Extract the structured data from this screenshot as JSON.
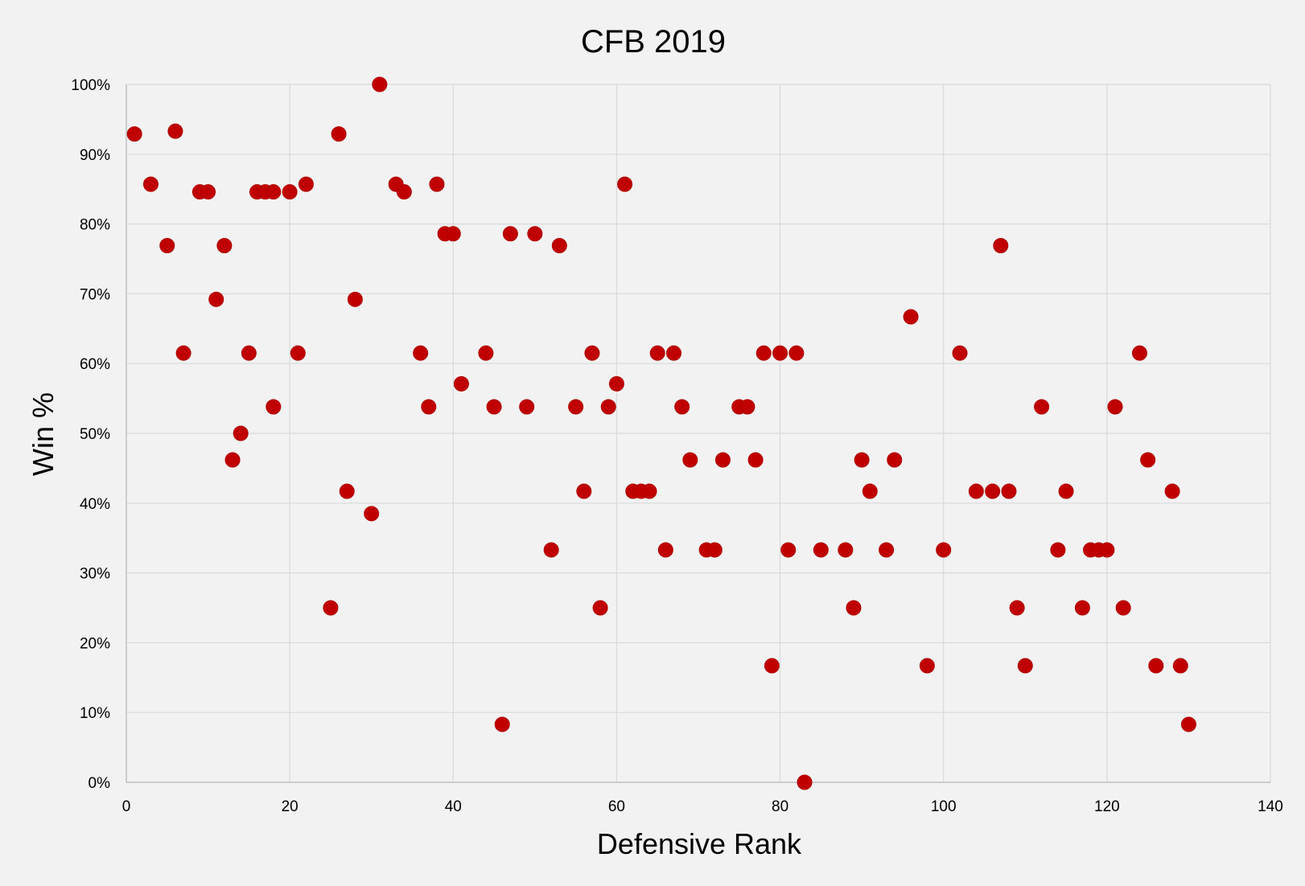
{
  "chart_data": {
    "type": "scatter",
    "title": "CFB 2019",
    "xlabel": "Defensive Rank",
    "ylabel": "Win %",
    "xlim": [
      0,
      140
    ],
    "ylim": [
      0,
      1
    ],
    "xticks": [
      0,
      20,
      40,
      60,
      80,
      100,
      120,
      140
    ],
    "yticks": [
      0,
      0.1,
      0.2,
      0.3,
      0.4,
      0.5,
      0.6,
      0.7,
      0.8,
      0.9,
      1.0
    ],
    "ytick_labels": [
      "0%",
      "10%",
      "20%",
      "30%",
      "40%",
      "50%",
      "60%",
      "70%",
      "80%",
      "90%",
      "100%"
    ],
    "grid": true,
    "legend": "none",
    "marker_color": "#c00000",
    "series": [
      {
        "points": [
          [
            1,
            0.929
          ],
          [
            3,
            0.857
          ],
          [
            5,
            0.769
          ],
          [
            6,
            0.933
          ],
          [
            7,
            0.615
          ],
          [
            9,
            0.846
          ],
          [
            10,
            0.846
          ],
          [
            11,
            0.692
          ],
          [
            12,
            0.769
          ],
          [
            13,
            0.462
          ],
          [
            14,
            0.5
          ],
          [
            15,
            0.615
          ],
          [
            16,
            0.846
          ],
          [
            17,
            0.846
          ],
          [
            18,
            0.846
          ],
          [
            18,
            0.538
          ],
          [
            20,
            0.846
          ],
          [
            21,
            0.615
          ],
          [
            22,
            0.857
          ],
          [
            25,
            0.25
          ],
          [
            26,
            0.929
          ],
          [
            27,
            0.417
          ],
          [
            28,
            0.692
          ],
          [
            30,
            0.385
          ],
          [
            31,
            1.0
          ],
          [
            33,
            0.857
          ],
          [
            34,
            0.846
          ],
          [
            36,
            0.615
          ],
          [
            37,
            0.538
          ],
          [
            38,
            0.857
          ],
          [
            39,
            0.786
          ],
          [
            40,
            0.786
          ],
          [
            41,
            0.571
          ],
          [
            44,
            0.615
          ],
          [
            45,
            0.538
          ],
          [
            46,
            0.083
          ],
          [
            47,
            0.786
          ],
          [
            49,
            0.538
          ],
          [
            50,
            0.786
          ],
          [
            52,
            0.333
          ],
          [
            53,
            0.769
          ],
          [
            55,
            0.538
          ],
          [
            56,
            0.417
          ],
          [
            57,
            0.615
          ],
          [
            58,
            0.25
          ],
          [
            59,
            0.538
          ],
          [
            60,
            0.571
          ],
          [
            61,
            0.857
          ],
          [
            62,
            0.417
          ],
          [
            63,
            0.417
          ],
          [
            64,
            0.417
          ],
          [
            65,
            0.615
          ],
          [
            66,
            0.333
          ],
          [
            67,
            0.615
          ],
          [
            68,
            0.538
          ],
          [
            69,
            0.462
          ],
          [
            71,
            0.333
          ],
          [
            72,
            0.333
          ],
          [
            73,
            0.462
          ],
          [
            75,
            0.538
          ],
          [
            76,
            0.538
          ],
          [
            77,
            0.462
          ],
          [
            78,
            0.615
          ],
          [
            79,
            0.167
          ],
          [
            80,
            0.615
          ],
          [
            81,
            0.333
          ],
          [
            82,
            0.615
          ],
          [
            83,
            0.0
          ],
          [
            85,
            0.333
          ],
          [
            88,
            0.333
          ],
          [
            89,
            0.25
          ],
          [
            90,
            0.462
          ],
          [
            91,
            0.417
          ],
          [
            93,
            0.333
          ],
          [
            94,
            0.462
          ],
          [
            96,
            0.667
          ],
          [
            98,
            0.167
          ],
          [
            100,
            0.333
          ],
          [
            102,
            0.615
          ],
          [
            104,
            0.417
          ],
          [
            106,
            0.417
          ],
          [
            107,
            0.769
          ],
          [
            108,
            0.417
          ],
          [
            109,
            0.25
          ],
          [
            110,
            0.167
          ],
          [
            112,
            0.538
          ],
          [
            114,
            0.333
          ],
          [
            115,
            0.417
          ],
          [
            117,
            0.25
          ],
          [
            118,
            0.333
          ],
          [
            119,
            0.333
          ],
          [
            120,
            0.333
          ],
          [
            121,
            0.538
          ],
          [
            122,
            0.25
          ],
          [
            124,
            0.615
          ],
          [
            125,
            0.462
          ],
          [
            126,
            0.167
          ],
          [
            128,
            0.417
          ],
          [
            129,
            0.167
          ],
          [
            130,
            0.083
          ]
        ]
      }
    ]
  }
}
